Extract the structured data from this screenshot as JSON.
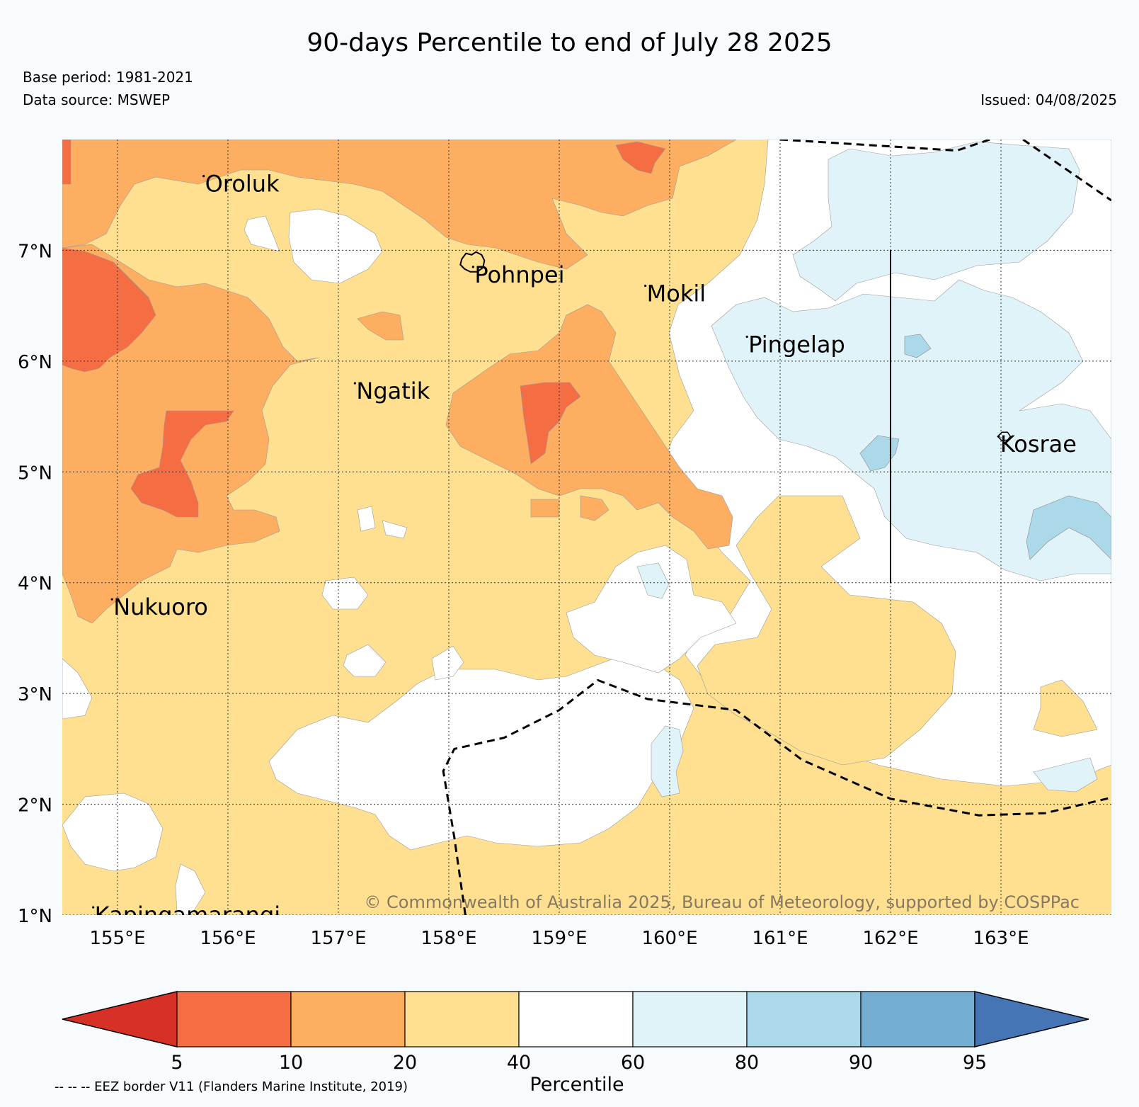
{
  "header": {
    "title": "90-days Percentile to end of July 28 2025",
    "base_period": "Base period: 1981-2021",
    "data_source": "Data source: MSWEP",
    "issued": "Issued: 04/08/2025"
  },
  "map": {
    "lon_range": [
      154.5,
      164.0
    ],
    "lat_range": [
      1.0,
      8.0
    ],
    "x_ticks": [
      {
        "lon": 155,
        "label": "155°E"
      },
      {
        "lon": 156,
        "label": "156°E"
      },
      {
        "lon": 157,
        "label": "157°E"
      },
      {
        "lon": 158,
        "label": "158°E"
      },
      {
        "lon": 159,
        "label": "159°E"
      },
      {
        "lon": 160,
        "label": "160°E"
      },
      {
        "lon": 161,
        "label": "161°E"
      },
      {
        "lon": 162,
        "label": "162°E"
      },
      {
        "lon": 163,
        "label": "163°E"
      }
    ],
    "y_ticks": [
      {
        "lat": 1,
        "label": "1°N"
      },
      {
        "lat": 2,
        "label": "2°N"
      },
      {
        "lat": 3,
        "label": "3°N"
      },
      {
        "lat": 4,
        "label": "4°N"
      },
      {
        "lat": 5,
        "label": "5°N"
      },
      {
        "lat": 6,
        "label": "6°N"
      },
      {
        "lat": 7,
        "label": "7°N"
      }
    ],
    "places": [
      {
        "name": "Oroluk",
        "lon": 155.78,
        "lat": 7.67
      },
      {
        "name": "Pohnpei",
        "lon": 158.22,
        "lat": 6.85
      },
      {
        "name": "Mokil",
        "lon": 159.78,
        "lat": 6.68
      },
      {
        "name": "Pingelap",
        "lon": 160.7,
        "lat": 6.22
      },
      {
        "name": "Ngatik",
        "lon": 157.15,
        "lat": 5.8
      },
      {
        "name": "Kosrae",
        "lon": 162.98,
        "lat": 5.32
      },
      {
        "name": "Nukuoro",
        "lon": 154.95,
        "lat": 3.85
      },
      {
        "name": "Kapingamarangi",
        "lon": 154.78,
        "lat": 1.07
      }
    ],
    "eez_borders": [
      [
        [
          161.0,
          8.0
        ],
        [
          162.6,
          7.9
        ],
        [
          162.9,
          8.0
        ]
      ],
      [
        [
          163.2,
          8.0
        ],
        [
          164.0,
          7.45
        ]
      ],
      [
        [
          158.15,
          1.0
        ],
        [
          158.05,
          1.7
        ],
        [
          157.95,
          2.3
        ],
        [
          158.05,
          2.5
        ],
        [
          158.5,
          2.6
        ],
        [
          159.0,
          2.85
        ],
        [
          159.35,
          3.12
        ],
        [
          159.8,
          2.95
        ],
        [
          160.6,
          2.85
        ],
        [
          161.2,
          2.4
        ],
        [
          162.0,
          2.05
        ],
        [
          162.8,
          1.9
        ],
        [
          163.4,
          1.92
        ],
        [
          164.0,
          2.06
        ]
      ]
    ],
    "meridian_line": {
      "lon": 162.0,
      "lat_from": 4.0,
      "lat_to": 7.0
    },
    "copyright": "© Commonwealth of Australia 2025, Bureau of Meteorology, supported by COSPPac"
  },
  "legend": {
    "title": "Percentile",
    "ticks": [
      "5",
      "10",
      "20",
      "40",
      "60",
      "80",
      "90",
      "95"
    ],
    "colors": [
      "#d73027",
      "#f46d43",
      "#fdae61",
      "#fee090",
      "#ffffff",
      "#e0f3f8",
      "#abd9e9",
      "#74add1",
      "#4575b4"
    ]
  },
  "footnote": "-- -- -- EEZ border V11 (Flanders Marine Institute, 2019)"
}
